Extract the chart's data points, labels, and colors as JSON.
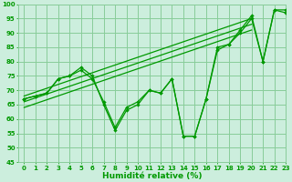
{
  "x": [
    0,
    1,
    2,
    3,
    4,
    5,
    6,
    7,
    8,
    9,
    10,
    11,
    12,
    13,
    14,
    15,
    16,
    17,
    18,
    19,
    20,
    21,
    22,
    23
  ],
  "line1": [
    67,
    68,
    69,
    74,
    75,
    78,
    75,
    65,
    56,
    63,
    65,
    70,
    69,
    74,
    54,
    54,
    67,
    85,
    86,
    91,
    96,
    80,
    98,
    98
  ],
  "line2": [
    67,
    68,
    69,
    74,
    75,
    77,
    74,
    66,
    57,
    64,
    66,
    70,
    69,
    74,
    54,
    54,
    67,
    84,
    86,
    90,
    95,
    80,
    98,
    97
  ],
  "trend1_x": [
    0,
    20
  ],
  "trend1_y": [
    68,
    95
  ],
  "trend2_x": [
    0,
    20
  ],
  "trend2_y": [
    66,
    93
  ],
  "trend3_x": [
    0,
    20
  ],
  "trend3_y": [
    64,
    91
  ],
  "background_color": "#cceedd",
  "grid_color": "#88cc99",
  "line_color": "#009900",
  "xlabel": "Humidité relative (%)",
  "ylim": [
    45,
    100
  ],
  "xlim": [
    -0.5,
    23
  ],
  "yticks": [
    45,
    50,
    55,
    60,
    65,
    70,
    75,
    80,
    85,
    90,
    95,
    100
  ],
  "xticks": [
    0,
    1,
    2,
    3,
    4,
    5,
    6,
    7,
    8,
    9,
    10,
    11,
    12,
    13,
    14,
    15,
    16,
    17,
    18,
    19,
    20,
    21,
    22,
    23
  ],
  "tick_fontsize": 5.0,
  "xlabel_fontsize": 6.5
}
